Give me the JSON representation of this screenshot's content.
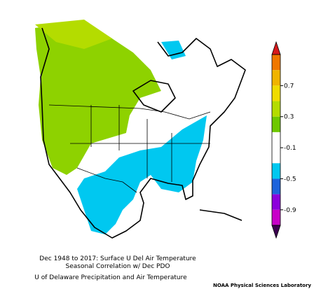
{
  "map": {
    "colorbar": {
      "labels": [
        "0.7",
        "0.3",
        "-0.1",
        "-0.5",
        "-0.9"
      ],
      "colors": [
        "#d7191c",
        "#f07800",
        "#f0b400",
        "#f0dc00",
        "#b4dc00",
        "#6ec800",
        "#ffffff",
        "#ffffff",
        "#00c8f0",
        "#1e64dc",
        "#8c00dc",
        "#c800c8",
        "#3c0050"
      ]
    },
    "caption": [
      "Dec 1948 to 2017: Surface U Del Air Temperature",
      "Seasonal Correlation w/ Dec PDO",
      "U of Delaware Precipitation and Air Temperature"
    ],
    "source": "NOAA Physical Sciences Laboratory"
  }
}
